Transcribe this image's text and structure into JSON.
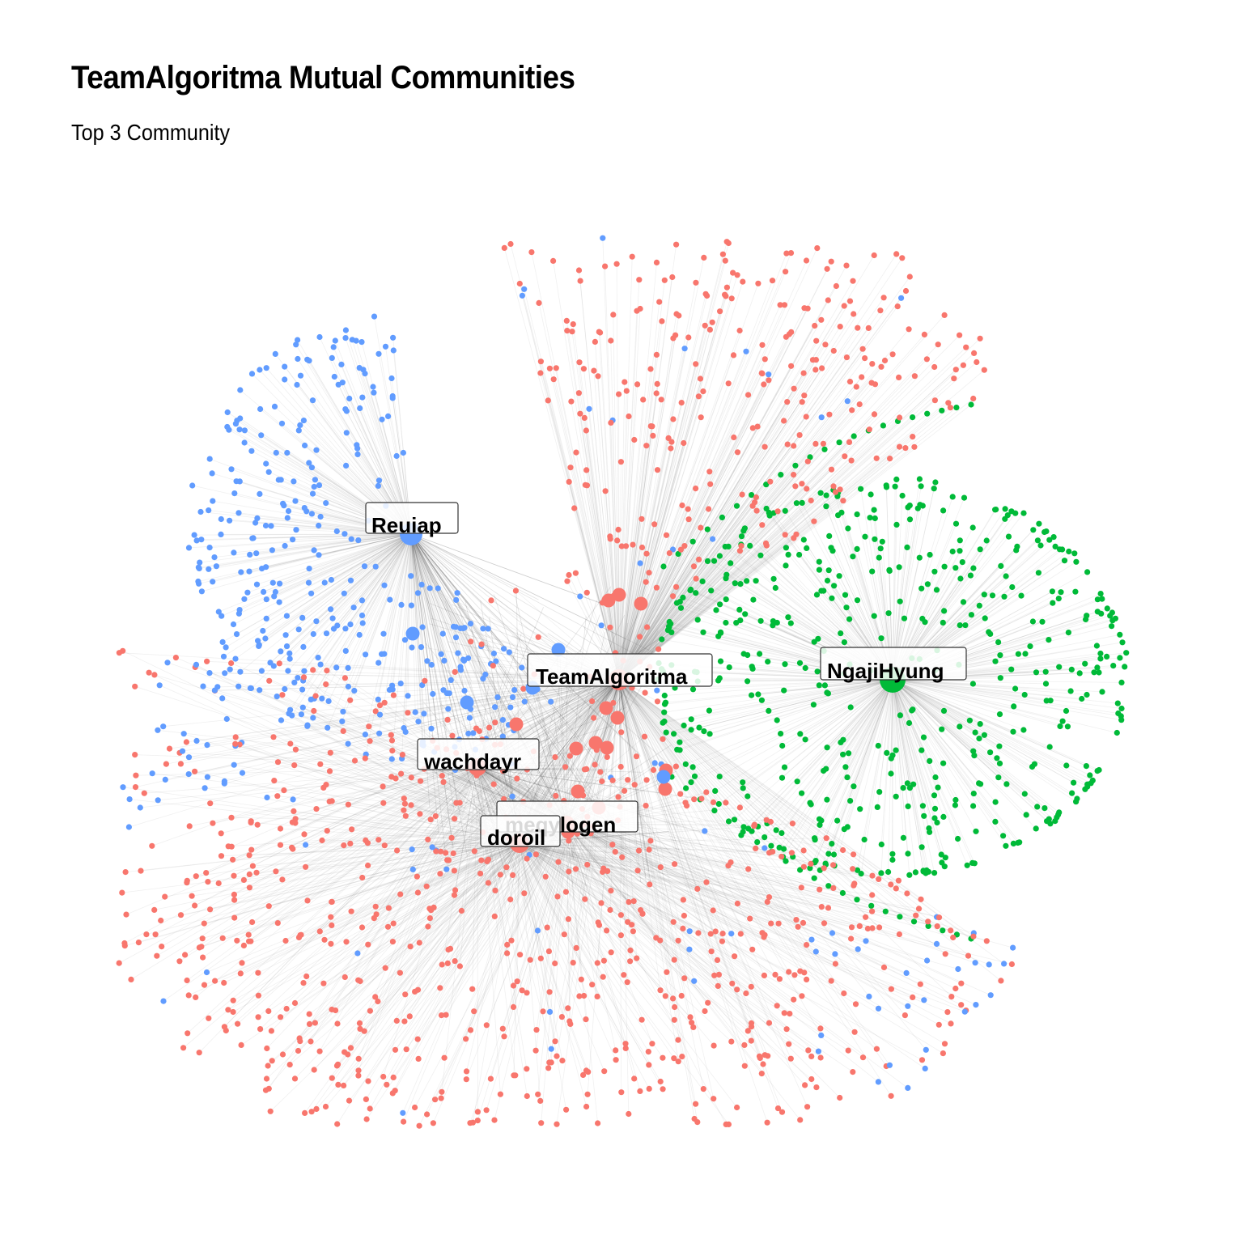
{
  "title": "TeamAlgoritma Mutual Communities",
  "subtitle": "Top 3 Community",
  "chart_data": {
    "type": "network",
    "title": "TeamAlgoritma Mutual Communities",
    "subtitle": "Top 3 Community",
    "colors": {
      "red": "#F8766D",
      "blue": "#619CFF",
      "green": "#00BA38",
      "edge": "#808080"
    },
    "labeled_nodes": [
      {
        "label": "Reuiap",
        "community": "blue"
      },
      {
        "label": "TeamAlgoritma",
        "community": "red"
      },
      {
        "label": "NgajiHyung",
        "community": "green"
      },
      {
        "label": "wachdayr",
        "community": "red"
      },
      {
        "label": "meqylogen",
        "community": "red"
      },
      {
        "label": "doroil",
        "community": "red"
      }
    ]
  }
}
